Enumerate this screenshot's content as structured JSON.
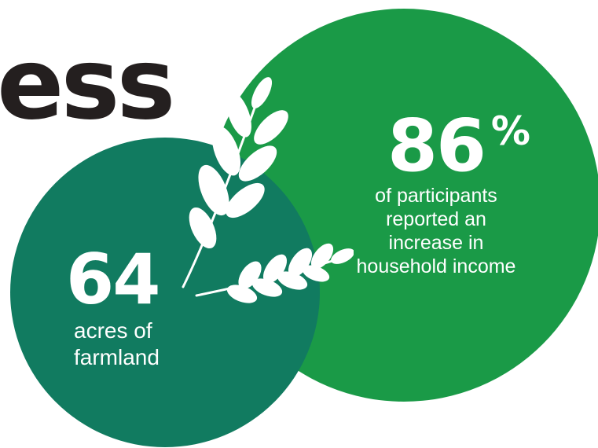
{
  "headline": {
    "text": "ess"
  },
  "stat_household_income": {
    "value": "86",
    "unit": "%",
    "caption_lines": [
      "of participants",
      "reported an",
      "increase in",
      "household income"
    ]
  },
  "stat_farmland": {
    "value": "64",
    "caption_lines": [
      "acres of",
      "farmland"
    ]
  },
  "colors": {
    "headline": "#241f1f",
    "big_circle": "#1a9a47",
    "small_circle": "#117b60",
    "text_on_circle": "#ffffff"
  },
  "icons": {
    "wheat": "wheat-icon"
  }
}
